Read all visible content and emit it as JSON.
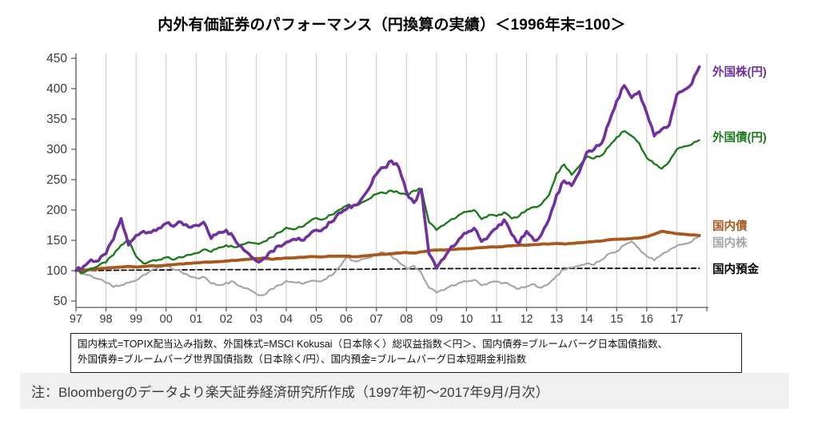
{
  "title": "内外有価証券のパフォーマンス（円換算の実績）＜1996年末=100＞",
  "chart_data": {
    "type": "line",
    "title": "内外有価証券のパフォーマンス（円換算の実績）＜1996年末=100＞",
    "x_unit": "year (monthly series, Jan 1997 - Sep 2017, values sampled quarterly)",
    "x_start": 1997.0,
    "x_step": 0.25,
    "x_axis": {
      "tick_labels": [
        "97",
        "98",
        "99",
        "00",
        "01",
        "02",
        "03",
        "04",
        "05",
        "06",
        "07",
        "08",
        "09",
        "10",
        "11",
        "12",
        "13",
        "14",
        "15",
        "16",
        "17"
      ],
      "domain": [
        1997,
        2018.1
      ],
      "gridlines": "vertical-yearly"
    },
    "y_axis": {
      "ticks": [
        50,
        100,
        150,
        200,
        250,
        300,
        350,
        400,
        450
      ],
      "min": 50,
      "max": 450,
      "gridlines": "none"
    },
    "legend_position": "right-of-plot",
    "series": [
      {
        "id": "domestic-deposit",
        "label": "国内預金",
        "color": "#000000",
        "style": "dashed",
        "values": [
          100,
          100.1,
          100.2,
          100.3,
          100.5,
          100.6,
          100.8,
          100.9,
          101,
          101.1,
          101.1,
          101.2,
          101.3,
          101.3,
          101.4,
          101.5,
          101.6,
          101.6,
          101.7,
          101.7,
          101.8,
          101.8,
          101.8,
          101.9,
          101.9,
          101.9,
          102,
          102,
          102,
          102,
          102.1,
          102.1,
          102.1,
          102.1,
          102.1,
          102.2,
          102.2,
          102.2,
          102.3,
          102.4,
          102.5,
          102.6,
          102.8,
          102.9,
          103,
          103.1,
          103.2,
          103.3,
          103.4,
          103.4,
          103.5,
          103.5,
          103.5,
          103.5,
          103.6,
          103.6,
          103.6,
          103.6,
          103.7,
          103.7,
          103.7,
          103.7,
          103.7,
          103.8,
          103.8,
          103.8,
          103.8,
          103.8,
          103.8,
          103.9,
          103.9,
          103.9,
          103.9,
          103.9,
          103.9,
          104,
          104,
          104,
          104,
          104,
          104,
          104,
          104,
          104
        ]
      },
      {
        "id": "domestic-stocks",
        "label": "国内株",
        "color": "#a6a6a6",
        "style": "solid",
        "values": [
          100,
          95,
          92,
          86,
          80,
          73,
          76,
          80,
          84,
          93,
          100,
          106,
          108,
          102,
          98,
          92,
          88,
          90,
          79,
          76,
          80,
          82,
          74,
          70,
          62,
          60,
          70,
          76,
          83,
          81,
          79,
          82,
          83,
          85,
          92,
          105,
          122,
          116,
          119,
          121,
          126,
          130,
          124,
          114,
          104,
          108,
          96,
          72,
          64,
          68,
          76,
          80,
          82,
          85,
          76,
          80,
          82,
          80,
          75,
          70,
          74,
          78,
          72,
          79,
          92,
          102,
          105,
          108,
          112,
          110,
          118,
          128,
          132,
          142,
          148,
          136,
          124,
          117,
          127,
          134,
          141,
          144,
          148,
          157
        ]
      },
      {
        "id": "domestic-bonds",
        "label": "国内債",
        "color": "#a9571c",
        "style": "solid",
        "values": [
          100,
          101,
          102,
          103,
          104,
          105,
          106,
          107,
          106,
          107,
          108,
          108,
          109,
          110,
          111,
          112,
          113,
          114,
          114,
          115,
          116,
          117,
          118,
          119,
          120,
          121,
          119,
          120,
          121,
          121,
          122,
          123,
          123,
          123,
          124,
          124,
          124,
          123,
          124,
          125,
          126,
          127,
          128,
          129,
          130,
          129,
          131,
          133,
          134,
          134,
          135,
          136,
          136,
          137,
          138,
          139,
          139,
          140,
          141,
          142,
          142,
          143,
          144,
          144,
          145,
          144,
          145,
          146,
          147,
          148,
          149,
          151,
          152,
          152,
          153,
          154,
          156,
          160,
          165,
          163,
          161,
          160,
          159,
          158
        ]
      },
      {
        "id": "foreign-bonds",
        "label": "外国債(円)",
        "color": "#1b7a1b",
        "style": "solid",
        "values": [
          100,
          97,
          104,
          108,
          114,
          126,
          142,
          150,
          124,
          112,
          116,
          118,
          122,
          118,
          122,
          126,
          129,
          135,
          131,
          138,
          142,
          139,
          143,
          147,
          145,
          148,
          155,
          163,
          171,
          168,
          172,
          180,
          187,
          185,
          192,
          200,
          207,
          208,
          212,
          218,
          226,
          228,
          232,
          228,
          225,
          232,
          235,
          180,
          167,
          175,
          185,
          192,
          197,
          200,
          185,
          192,
          190,
          196,
          186,
          190,
          200,
          205,
          210,
          225,
          260,
          275,
          258,
          272,
          288,
          285,
          290,
          305,
          320,
          330,
          322,
          310,
          286,
          276,
          268,
          280,
          300,
          305,
          308,
          315
        ]
      },
      {
        "id": "foreign-stocks",
        "label": "外国株(円)",
        "color": "#7030a0",
        "style": "solid",
        "values": [
          100,
          107,
          118,
          116,
          128,
          152,
          186,
          142,
          158,
          165,
          163,
          170,
          178,
          173,
          180,
          172,
          175,
          180,
          153,
          163,
          167,
          155,
          140,
          128,
          116,
          120,
          132,
          141,
          147,
          152,
          150,
          158,
          167,
          170,
          180,
          195,
          201,
          208,
          218,
          235,
          259,
          270,
          281,
          270,
          230,
          212,
          234,
          128,
          104,
          120,
          140,
          152,
          162,
          170,
          148,
          158,
          170,
          184,
          160,
          145,
          165,
          150,
          160,
          185,
          225,
          248,
          240,
          262,
          295,
          300,
          310,
          345,
          380,
          405,
          385,
          395,
          360,
          322,
          333,
          340,
          390,
          398,
          408,
          436
        ]
      }
    ]
  },
  "footnote": {
    "line1": "国内株式=TOPIX配当込み指数、外国株式=MSCI Kokusai（日本除く）総収益指数＜円＞、国内債券=ブルームバーグ日本国債指数、",
    "line2": "外国債券=ブルームバーグ世界国債指数（日本除く/円）、国内預金=ブルームバーグ日本短期金利指数"
  },
  "source_note": "注：Bloombergのデータより楽天証券経済研究所作成（1997年初～2017年9月/月次）",
  "colors": {
    "foreign_stocks": "#7030a0",
    "foreign_bonds": "#1b7a1b",
    "domestic_bonds": "#a9571c",
    "domestic_stocks": "#a6a6a6",
    "domestic_deposit": "#000000",
    "gridline": "#c9c9c9",
    "axis": "#595959",
    "note_background": "#f0f0f0"
  }
}
